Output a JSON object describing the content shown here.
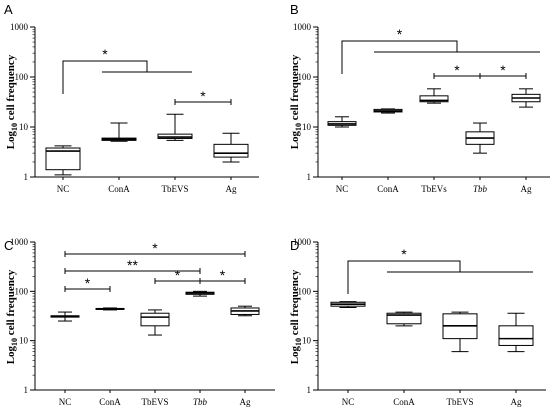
{
  "y_axis_label": "Log10 cell frequency",
  "chart_data": [
    {
      "type": "box",
      "panel": "A",
      "ylabel": "Log10 cell frequency",
      "yscale": "log",
      "ylim": [
        1,
        1000
      ],
      "y_ticks": [
        "1",
        "10",
        "100",
        "1000"
      ],
      "categories": [
        "NC",
        "ConA",
        "TbEVS",
        "Ag"
      ],
      "italic_categories": [],
      "boxes": [
        {
          "min": 1.1,
          "q1": 1.4,
          "median": 3.3,
          "q3": 3.8,
          "max": 4.2
        },
        {
          "min": 5.2,
          "q1": 5.4,
          "median": 5.7,
          "q3": 6.0,
          "max": 12
        },
        {
          "min": 5.4,
          "q1": 5.9,
          "median": 6.3,
          "q3": 7.2,
          "max": 18
        },
        {
          "min": 2.0,
          "q1": 2.5,
          "median": 3.0,
          "q3": 4.5,
          "max": 7.5
        }
      ],
      "annotations": [
        {
          "type": "bracket_one_to_many",
          "from": 0,
          "to": [
            1,
            2
          ],
          "label": "*"
        },
        {
          "type": "pair",
          "from": 2,
          "to": 3,
          "label": "*"
        }
      ]
    },
    {
      "type": "box",
      "panel": "B",
      "ylabel": "Log10 cell frequency",
      "yscale": "log",
      "ylim": [
        1,
        1000
      ],
      "y_ticks": [
        "1",
        "10",
        "100",
        "1000"
      ],
      "categories": [
        "NC",
        "ConA",
        "TbEVs",
        "Tbb",
        "Ag"
      ],
      "italic_categories": [
        "Tbb"
      ],
      "boxes": [
        {
          "min": 10,
          "q1": 10.8,
          "median": 11.5,
          "q3": 12.8,
          "max": 16
        },
        {
          "min": 19,
          "q1": 20,
          "median": 21,
          "q3": 22.5,
          "max": 23
        },
        {
          "min": 30,
          "q1": 32,
          "median": 34,
          "q3": 42,
          "max": 58
        },
        {
          "min": 3,
          "q1": 4.5,
          "median": 6,
          "q3": 8,
          "max": 12
        },
        {
          "min": 25,
          "q1": 32,
          "median": 38,
          "q3": 45,
          "max": 58
        }
      ],
      "annotations": [
        {
          "type": "bracket_one_to_many",
          "from": 0,
          "to": [
            1,
            2,
            3,
            4
          ],
          "label": "*"
        },
        {
          "type": "pair",
          "from": 2,
          "to": 3,
          "label": "*"
        },
        {
          "type": "pair",
          "from": 3,
          "to": 4,
          "label": "*"
        }
      ]
    },
    {
      "type": "box",
      "panel": "C",
      "ylabel": "Log10 cell frequency",
      "yscale": "log",
      "ylim": [
        1,
        1000
      ],
      "y_ticks": [
        "1",
        "10",
        "100",
        "1000"
      ],
      "categories": [
        "NC",
        "ConA",
        "TbEVS",
        "Tbb",
        "Ag"
      ],
      "italic_categories": [
        "Tbb"
      ],
      "boxes": [
        {
          "min": 25,
          "q1": 30,
          "median": 31,
          "q3": 32,
          "max": 38
        },
        {
          "min": 42,
          "q1": 43,
          "median": 44,
          "q3": 45,
          "max": 46
        },
        {
          "min": 13,
          "q1": 20,
          "median": 30,
          "q3": 36,
          "max": 42
        },
        {
          "min": 80,
          "q1": 87,
          "median": 92,
          "q3": 96,
          "max": 100
        },
        {
          "min": 32,
          "q1": 34,
          "median": 40,
          "q3": 46,
          "max": 50
        }
      ],
      "annotations": [
        {
          "type": "pair",
          "from": 0,
          "to": 4,
          "label": "*"
        },
        {
          "type": "pair",
          "from": 0,
          "to": 3,
          "label": "**"
        },
        {
          "type": "pair",
          "from": 0,
          "to": 1,
          "label": "*"
        },
        {
          "type": "pair",
          "from": 2,
          "to": 3,
          "label": "*"
        },
        {
          "type": "pair",
          "from": 3,
          "to": 4,
          "label": "*"
        }
      ]
    },
    {
      "type": "box",
      "panel": "D",
      "ylabel": "Log10 cell frequency",
      "yscale": "log",
      "ylim": [
        1,
        1000
      ],
      "y_ticks": [
        "1",
        "10",
        "100",
        "1000"
      ],
      "categories": [
        "NC",
        "ConA",
        "TbEVS",
        "Ag"
      ],
      "italic_categories": [],
      "boxes": [
        {
          "min": 47,
          "q1": 50,
          "median": 55,
          "q3": 60,
          "max": 62
        },
        {
          "min": 20,
          "q1": 22,
          "median": 33,
          "q3": 36,
          "max": 38
        },
        {
          "min": 6,
          "q1": 11,
          "median": 20,
          "q3": 35,
          "max": 38
        },
        {
          "min": 6,
          "q1": 8,
          "median": 11,
          "q3": 20,
          "max": 36
        }
      ],
      "annotations": [
        {
          "type": "bracket_one_to_many",
          "from": 0,
          "to": [
            1,
            2,
            3
          ],
          "label": "*"
        }
      ]
    }
  ]
}
